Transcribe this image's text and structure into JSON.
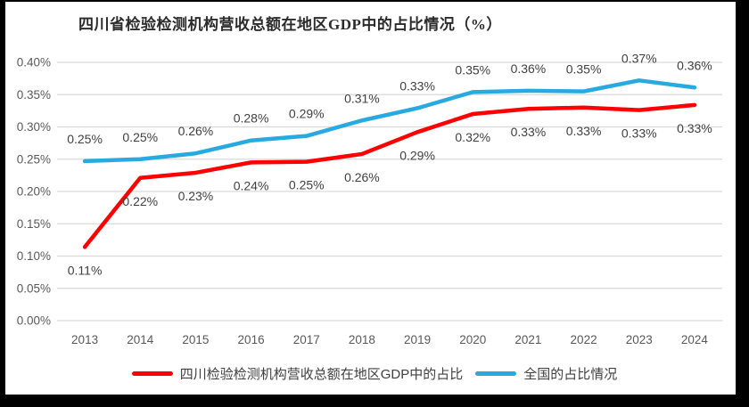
{
  "page": {
    "frame_color": "#000000",
    "panel_background": "#ffffff"
  },
  "chart_data": {
    "type": "line",
    "title": "四川省检验检测机构营收总额在地区GDP中的占比情况（%）",
    "categories": [
      "2013",
      "2014",
      "2015",
      "2016",
      "2017",
      "2018",
      "2019",
      "2020",
      "2021",
      "2022",
      "2023",
      "2024"
    ],
    "series": [
      {
        "key": "sichuan",
        "name": "四川检验检测机构营收总额在地区GDP中的占比",
        "color": "#fe0000",
        "labels": [
          "0.11%",
          "0.22%",
          "0.23%",
          "0.24%",
          "0.25%",
          "0.26%",
          "0.29%",
          "0.32%",
          "0.33%",
          "0.33%",
          "0.33%",
          "0.33%"
        ],
        "values": [
          0.11,
          0.22,
          0.23,
          0.24,
          0.25,
          0.26,
          0.29,
          0.32,
          0.33,
          0.33,
          0.33,
          0.33
        ],
        "plot_values": [
          0.114,
          0.221,
          0.229,
          0.245,
          0.246,
          0.258,
          0.292,
          0.32,
          0.328,
          0.33,
          0.326,
          0.334
        ],
        "label_side": "below"
      },
      {
        "key": "national",
        "name": "全国的占比情况",
        "color": "#28a9e0",
        "labels": [
          "0.25%",
          "0.25%",
          "0.26%",
          "0.28%",
          "0.29%",
          "0.31%",
          "0.33%",
          "0.35%",
          "0.36%",
          "0.35%",
          "0.37%",
          "0.36%"
        ],
        "values": [
          0.25,
          0.25,
          0.26,
          0.28,
          0.29,
          0.31,
          0.33,
          0.35,
          0.36,
          0.35,
          0.37,
          0.36
        ],
        "plot_values": [
          0.247,
          0.25,
          0.259,
          0.279,
          0.286,
          0.31,
          0.329,
          0.354,
          0.356,
          0.355,
          0.372,
          0.361
        ],
        "label_side": "above"
      }
    ],
    "y_axis": {
      "ticks": [
        "0.00%",
        "0.05%",
        "0.10%",
        "0.15%",
        "0.20%",
        "0.25%",
        "0.30%",
        "0.35%",
        "0.40%"
      ],
      "min": 0,
      "max": 0.4
    },
    "grid": "horizontal",
    "legend_position": "bottom"
  },
  "colors": {
    "gridline": "#d9d9d9",
    "axis_text": "#595959",
    "data_label_text": "#404040"
  }
}
